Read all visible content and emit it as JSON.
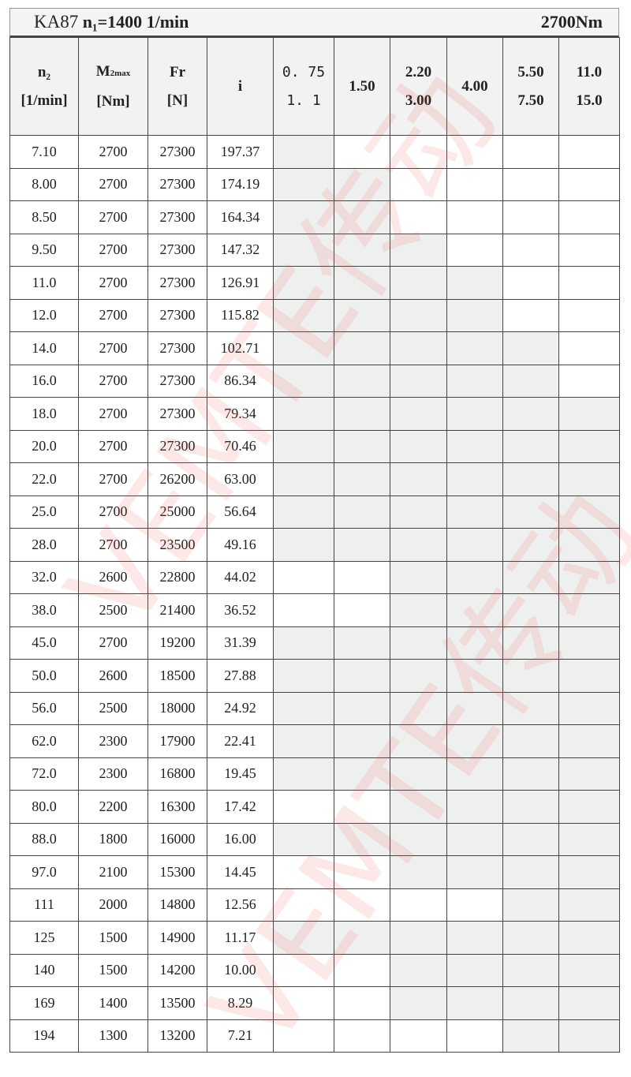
{
  "title": {
    "model": "KA87",
    "input_speed": "n₁=1400 1/min",
    "torque": "2700Nm"
  },
  "headers": {
    "n2": [
      "n₂",
      "[1/min]"
    ],
    "m2max": [
      "M",
      "2max",
      "[Nm]"
    ],
    "fr": [
      "Fr",
      "[N]"
    ],
    "i": "i",
    "power": [
      [
        "0. 75",
        "1. 1"
      ],
      [
        "1.50"
      ],
      [
        "2.20",
        "3.00"
      ],
      [
        "4.00"
      ],
      [
        "5.50",
        "7.50"
      ],
      [
        "11.0",
        "15.0"
      ]
    ]
  },
  "watermark": "VEMTE传动",
  "shade_color": "#eef0ef",
  "rows": [
    {
      "n2": "7.10",
      "m2": "2700",
      "fr": "27300",
      "i": "197.37",
      "avail": [
        1,
        0,
        0,
        0,
        0,
        0
      ]
    },
    {
      "n2": "8.00",
      "m2": "2700",
      "fr": "27300",
      "i": "174.19",
      "avail": [
        1,
        1,
        0,
        0,
        0,
        0
      ]
    },
    {
      "n2": "8.50",
      "m2": "2700",
      "fr": "27300",
      "i": "164.34",
      "avail": [
        1,
        1,
        0,
        0,
        0,
        0
      ]
    },
    {
      "n2": "9.50",
      "m2": "2700",
      "fr": "27300",
      "i": "147.32",
      "avail": [
        1,
        1,
        1,
        0,
        0,
        0
      ]
    },
    {
      "n2": "11.0",
      "m2": "2700",
      "fr": "27300",
      "i": "126.91",
      "avail": [
        1,
        1,
        1,
        1,
        0,
        0
      ]
    },
    {
      "n2": "12.0",
      "m2": "2700",
      "fr": "27300",
      "i": "115.82",
      "avail": [
        1,
        1,
        1,
        1,
        0,
        0
      ]
    },
    {
      "n2": "14.0",
      "m2": "2700",
      "fr": "27300",
      "i": "102.71",
      "avail": [
        1,
        1,
        1,
        1,
        1,
        0
      ]
    },
    {
      "n2": "16.0",
      "m2": "2700",
      "fr": "27300",
      "i": "86.34",
      "avail": [
        1,
        1,
        1,
        1,
        1,
        0
      ]
    },
    {
      "n2": "18.0",
      "m2": "2700",
      "fr": "27300",
      "i": "79.34",
      "avail": [
        1,
        1,
        1,
        1,
        1,
        1
      ]
    },
    {
      "n2": "20.0",
      "m2": "2700",
      "fr": "27300",
      "i": "70.46",
      "avail": [
        1,
        1,
        1,
        1,
        1,
        1
      ]
    },
    {
      "n2": "22.0",
      "m2": "2700",
      "fr": "26200",
      "i": "63.00",
      "avail": [
        1,
        1,
        1,
        1,
        1,
        1
      ]
    },
    {
      "n2": "25.0",
      "m2": "2700",
      "fr": "25000",
      "i": "56.64",
      "avail": [
        1,
        1,
        1,
        1,
        1,
        1
      ]
    },
    {
      "n2": "28.0",
      "m2": "2700",
      "fr": "23500",
      "i": "49.16",
      "avail": [
        1,
        1,
        1,
        1,
        1,
        1
      ]
    },
    {
      "n2": "32.0",
      "m2": "2600",
      "fr": "22800",
      "i": "44.02",
      "avail": [
        0,
        0,
        1,
        1,
        1,
        1
      ]
    },
    {
      "n2": "38.0",
      "m2": "2500",
      "fr": "21400",
      "i": "36.52",
      "avail": [
        0,
        0,
        1,
        1,
        1,
        1
      ]
    },
    {
      "n2": "45.0",
      "m2": "2700",
      "fr": "19200",
      "i": "31.39",
      "avail": [
        1,
        1,
        1,
        1,
        1,
        1
      ]
    },
    {
      "n2": "50.0",
      "m2": "2600",
      "fr": "18500",
      "i": "27.88",
      "avail": [
        1,
        1,
        1,
        1,
        1,
        1
      ]
    },
    {
      "n2": "56.0",
      "m2": "2500",
      "fr": "18000",
      "i": "24.92",
      "avail": [
        1,
        1,
        1,
        1,
        1,
        1
      ]
    },
    {
      "n2": "62.0",
      "m2": "2300",
      "fr": "17900",
      "i": "22.41",
      "avail": [
        1,
        1,
        1,
        1,
        1,
        1
      ]
    },
    {
      "n2": "72.0",
      "m2": "2300",
      "fr": "16800",
      "i": "19.45",
      "avail": [
        1,
        1,
        1,
        1,
        1,
        1
      ]
    },
    {
      "n2": "80.0",
      "m2": "2200",
      "fr": "16300",
      "i": "17.42",
      "avail": [
        0,
        0,
        1,
        1,
        1,
        1
      ]
    },
    {
      "n2": "88.0",
      "m2": "1800",
      "fr": "16000",
      "i": "16.00",
      "avail": [
        1,
        1,
        1,
        1,
        1,
        1
      ]
    },
    {
      "n2": "97.0",
      "m2": "2100",
      "fr": "15300",
      "i": "14.45",
      "avail": [
        0,
        0,
        1,
        1,
        1,
        1
      ]
    },
    {
      "n2": "111",
      "m2": "2000",
      "fr": "14800",
      "i": "12.56",
      "avail": [
        0,
        0,
        0,
        0,
        1,
        1
      ]
    },
    {
      "n2": "125",
      "m2": "1500",
      "fr": "14900",
      "i": "11.17",
      "avail": [
        1,
        1,
        1,
        1,
        1,
        1
      ]
    },
    {
      "n2": "140",
      "m2": "1500",
      "fr": "14200",
      "i": "10.00",
      "avail": [
        0,
        0,
        1,
        1,
        1,
        1
      ]
    },
    {
      "n2": "169",
      "m2": "1400",
      "fr": "13500",
      "i": "8.29",
      "avail": [
        0,
        0,
        1,
        1,
        1,
        1
      ]
    },
    {
      "n2": "194",
      "m2": "1300",
      "fr": "13200",
      "i": "7.21",
      "avail": [
        0,
        0,
        0,
        0,
        1,
        1
      ]
    }
  ]
}
